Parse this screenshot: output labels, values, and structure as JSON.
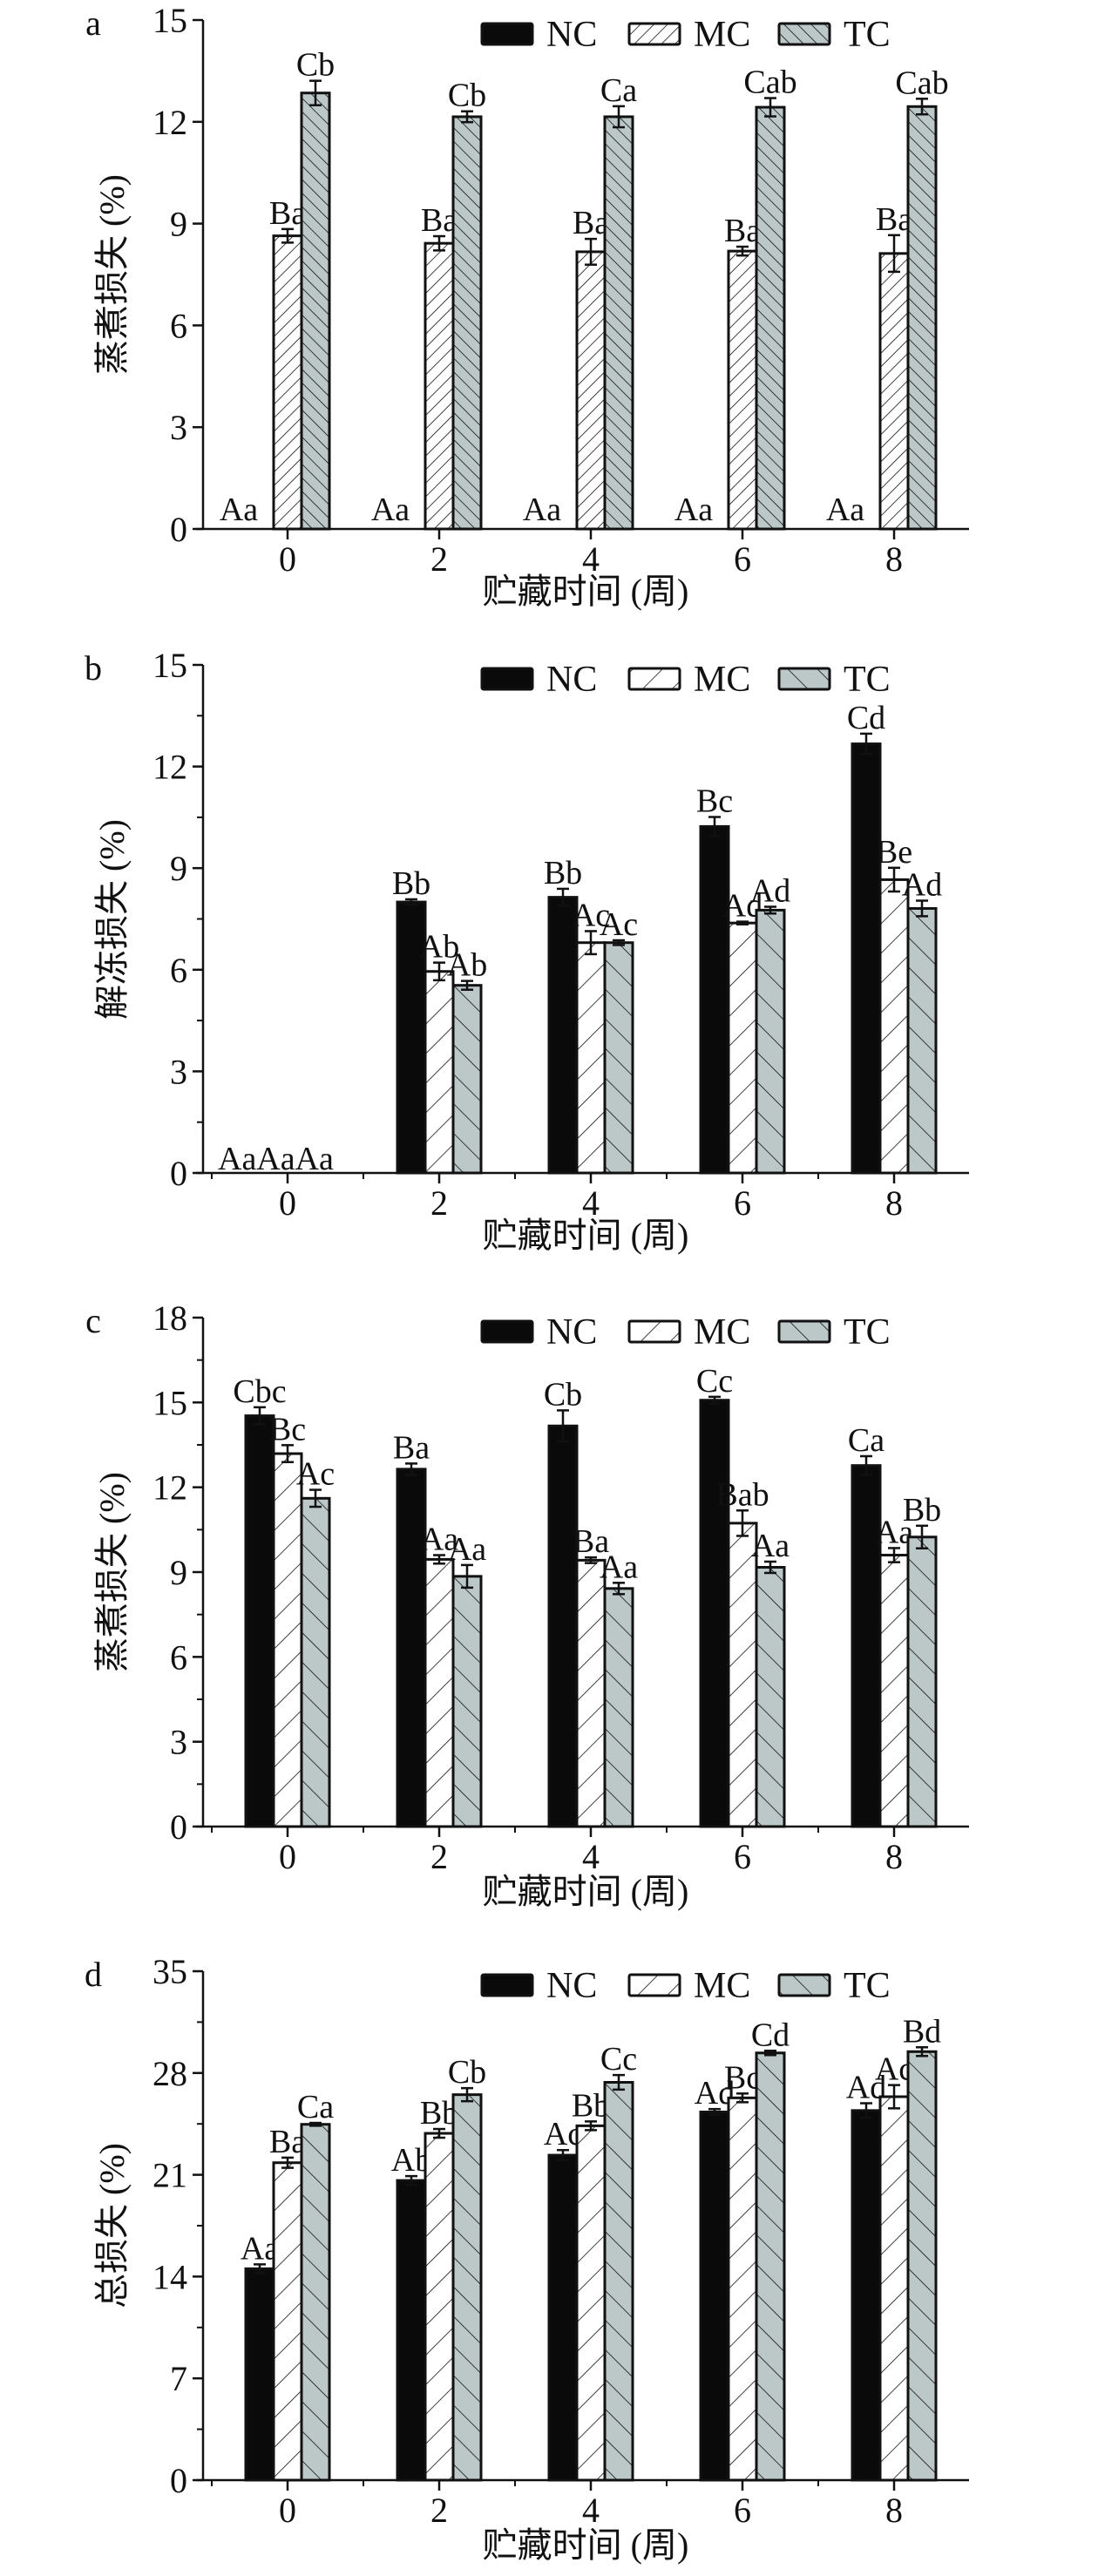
{
  "colors": {
    "NC": "#0a0a0a",
    "MC": "#ffffff",
    "TC": "#bcc8c8",
    "outline": "#111111"
  },
  "chart_data": [
    {
      "type": "bar",
      "panel_letter": "a",
      "ylabel": "蒸煮损失 (%)",
      "xlabel": "贮藏时间 (周)",
      "categories": [
        "0",
        "2",
        "4",
        "6",
        "8"
      ],
      "ylim": [
        0,
        15
      ],
      "yticks": [
        "0",
        "3",
        "6",
        "9",
        "12",
        "15"
      ],
      "minor_ticks": false,
      "legend": [
        "NC",
        "MC",
        "TC"
      ],
      "legend_position": "top-right",
      "series": [
        {
          "name": "NC",
          "values": [
            0,
            0,
            0,
            0,
            0
          ],
          "errors": [
            0,
            0,
            0,
            0,
            0
          ],
          "letters": [
            "Aa",
            "Aa",
            "Aa",
            "Aa",
            "Aa"
          ]
        },
        {
          "name": "MC",
          "values": [
            8.64,
            8.42,
            8.17,
            8.19,
            8.12
          ],
          "errors": [
            0.2,
            0.21,
            0.38,
            0.13,
            0.54
          ],
          "letters": [
            "Ba",
            "Ba",
            "Ba",
            "Ba",
            "Ba"
          ]
        },
        {
          "name": "TC",
          "values": [
            12.85,
            12.15,
            12.15,
            12.43,
            12.45
          ],
          "errors": [
            0.36,
            0.16,
            0.31,
            0.27,
            0.23
          ],
          "letters": [
            "Cb",
            "Cb",
            "Ca",
            "Cab",
            "Cab"
          ]
        }
      ]
    },
    {
      "type": "bar",
      "panel_letter": "b",
      "ylabel": "解冻损失 (%)",
      "xlabel": "贮藏时间 (周)",
      "categories": [
        "0",
        "2",
        "4",
        "6",
        "8"
      ],
      "ylim": [
        0,
        15
      ],
      "yticks": [
        "0",
        "3",
        "6",
        "9",
        "12",
        "15"
      ],
      "minor_ticks": true,
      "legend": [
        "NC",
        "MC",
        "TC"
      ],
      "legend_position": "top-right",
      "zero_label": "AaAaAa",
      "series": [
        {
          "name": "NC",
          "values": [
            0,
            8.0,
            8.14,
            10.23,
            12.67
          ],
          "errors": [
            0,
            0.08,
            0.25,
            0.28,
            0.3
          ],
          "letters": [
            "",
            "Bb",
            "Bb",
            "Bc",
            "Cd"
          ]
        },
        {
          "name": "MC",
          "values": [
            0,
            5.95,
            6.8,
            7.38,
            8.66
          ],
          "errors": [
            0,
            0.26,
            0.34,
            0.04,
            0.35
          ],
          "letters": [
            "",
            "Ab",
            "Ac",
            "Ad",
            "Be"
          ]
        },
        {
          "name": "TC",
          "values": [
            0,
            5.54,
            6.8,
            7.76,
            7.81
          ],
          "errors": [
            0,
            0.13,
            0.07,
            0.1,
            0.23
          ],
          "letters": [
            "",
            "Ab",
            "Ac",
            "Ad",
            "Ad"
          ]
        }
      ]
    },
    {
      "type": "bar",
      "panel_letter": "c",
      "ylabel": "蒸煮损失 (%)",
      "xlabel": "贮藏时间 (周)",
      "categories": [
        "0",
        "2",
        "4",
        "6",
        "8"
      ],
      "ylim": [
        0,
        18
      ],
      "yticks": [
        "0",
        "3",
        "6",
        "9",
        "12",
        "15",
        "18"
      ],
      "minor_ticks": true,
      "legend": [
        "NC",
        "MC",
        "TC"
      ],
      "legend_position": "top-right",
      "series": [
        {
          "name": "NC",
          "values": [
            14.53,
            12.64,
            14.17,
            15.08,
            12.77
          ],
          "errors": [
            0.3,
            0.2,
            0.55,
            0.12,
            0.33
          ],
          "letters": [
            "Cbc",
            "Ba",
            "Cb",
            "Cc",
            "Ca"
          ]
        },
        {
          "name": "MC",
          "values": [
            13.19,
            9.45,
            9.42,
            10.73,
            9.6
          ],
          "errors": [
            0.3,
            0.15,
            0.1,
            0.45,
            0.25
          ],
          "letters": [
            "Bc",
            "Aa",
            "Ba",
            "Bab",
            "Aa"
          ]
        },
        {
          "name": "TC",
          "values": [
            11.61,
            8.85,
            8.42,
            9.17,
            10.24
          ],
          "errors": [
            0.3,
            0.4,
            0.2,
            0.2,
            0.4
          ],
          "letters": [
            "Ac",
            "Aa",
            "Aa",
            "Aa",
            "Bb"
          ]
        }
      ]
    },
    {
      "type": "bar",
      "panel_letter": "d",
      "ylabel": "总损失 (%)",
      "xlabel": "贮藏时间 (周)",
      "categories": [
        "0",
        "2",
        "4",
        "6",
        "8"
      ],
      "ylim": [
        0,
        35
      ],
      "yticks": [
        "0",
        "7",
        "14",
        "21",
        "28",
        "35"
      ],
      "minor_ticks": true,
      "legend": [
        "NC",
        "MC",
        "TC"
      ],
      "legend_position": "top-right",
      "series": [
        {
          "name": "NC",
          "values": [
            14.54,
            20.61,
            22.35,
            25.32,
            25.42
          ],
          "errors": [
            0.3,
            0.3,
            0.35,
            0.2,
            0.5
          ],
          "letters": [
            "Aa",
            "Ab",
            "Ac",
            "Ad",
            "Ad"
          ]
        },
        {
          "name": "MC",
          "values": [
            21.83,
            23.85,
            24.37,
            26.29,
            26.37
          ],
          "errors": [
            0.35,
            0.3,
            0.3,
            0.3,
            0.8
          ],
          "letters": [
            "Ba",
            "Bb",
            "Bb",
            "Bc",
            "Ac"
          ]
        },
        {
          "name": "TC",
          "values": [
            24.47,
            26.51,
            27.36,
            29.38,
            29.47
          ],
          "errors": [
            0.1,
            0.45,
            0.5,
            0.15,
            0.3
          ],
          "letters": [
            "Ca",
            "Cb",
            "Cc",
            "Cd",
            "Bd"
          ]
        }
      ]
    }
  ]
}
